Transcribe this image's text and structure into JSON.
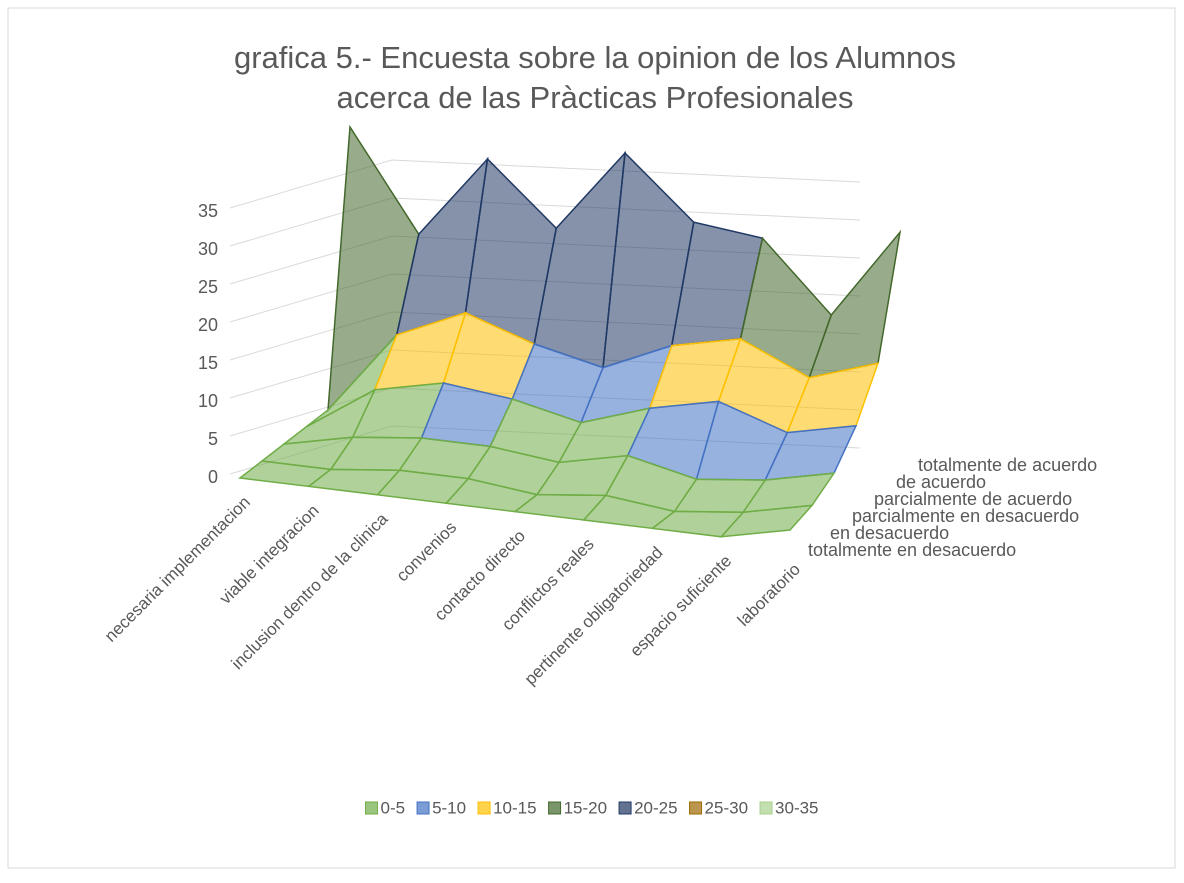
{
  "chart_data": {
    "type": "surface",
    "title": [
      "grafica 5.- Encuesta sobre la opinion de los Alumnos",
      "acerca de las Pràcticas Profesionales"
    ],
    "categories": [
      "necesaria implementacion",
      "viable integracion",
      "inclusion dentro de la clinica",
      "convenios",
      "contacto directo",
      "conflictos reales",
      "pertinente obligatoriedad",
      "espacio suficiente",
      "laboratorio"
    ],
    "series": [
      {
        "name": "totalmente en desacuerdo",
        "values": [
          0,
          0,
          0,
          0,
          0,
          0,
          0,
          0,
          2
        ]
      },
      {
        "name": "en desacuerdo",
        "values": [
          0,
          0,
          1,
          1,
          0,
          1,
          0,
          1,
          3
        ]
      },
      {
        "name": "parcialmente en desacuerdo",
        "values": [
          0,
          2,
          3,
          3,
          2,
          4,
          2,
          3,
          5
        ]
      },
      {
        "name": "parcialmente de acuerdo",
        "values": [
          0,
          6,
          8,
          7,
          5,
          8,
          10,
          7,
          9
        ]
      },
      {
        "name": "de acuerdo",
        "values": [
          0,
          11,
          15,
          12,
          10,
          14,
          16,
          12,
          15
        ]
      },
      {
        "name": "totalmente de acuerdo",
        "values": [
          35,
          22,
          33,
          25,
          36,
          28,
          27,
          18,
          30
        ]
      }
    ],
    "bands": [
      {
        "name": "0-5",
        "range": [
          0,
          5
        ],
        "color": "#70ad47"
      },
      {
        "name": "5-10",
        "range": [
          5,
          10
        ],
        "color": "#4472c4"
      },
      {
        "name": "10-15",
        "range": [
          10,
          15
        ],
        "color": "#ffc000"
      },
      {
        "name": "15-20",
        "range": [
          15,
          20
        ],
        "color": "#43682b"
      },
      {
        "name": "20-25",
        "range": [
          20,
          25
        ],
        "color": "#203864"
      },
      {
        "name": "25-30",
        "range": [
          25,
          30
        ],
        "color": "#9e6a00"
      },
      {
        "name": "30-35",
        "range": [
          30,
          35
        ],
        "color": "#a9d18e"
      }
    ],
    "zlim": [
      0,
      35
    ],
    "zticks": [
      0,
      5,
      10,
      15,
      20,
      25,
      30,
      35
    ],
    "grid": true,
    "legend": "bottom"
  }
}
